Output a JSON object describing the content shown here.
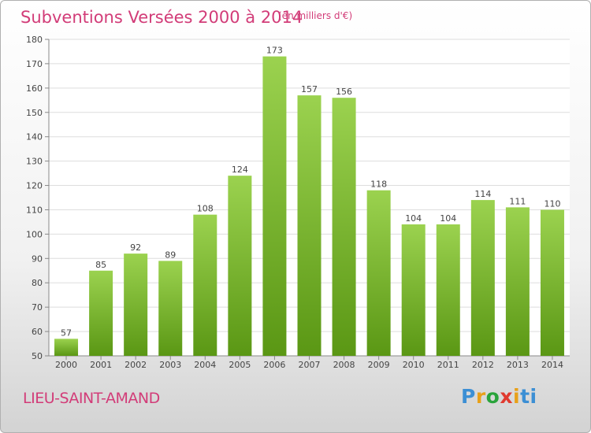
{
  "header": {
    "title": "Subventions Versées 2000 à 2014",
    "unit": "(en milliers d'€)"
  },
  "footer": {
    "commune": "LIEU-SAINT-AMAND",
    "logo": "Proxiti"
  },
  "colors": {
    "title": "#d23c78",
    "bar_light": "#9bd24f",
    "bar_dark": "#5a9714",
    "grid": "#dddddd"
  },
  "chart_data": {
    "type": "bar",
    "title": "Subventions Versées 2000 à 2014",
    "subtitle": "(en milliers d'€)",
    "categories": [
      "2000",
      "2001",
      "2002",
      "2003",
      "2004",
      "2005",
      "2006",
      "2007",
      "2008",
      "2009",
      "2010",
      "2011",
      "2012",
      "2013",
      "2014"
    ],
    "values": [
      57,
      85,
      92,
      89,
      108,
      124,
      173,
      157,
      156,
      118,
      104,
      104,
      114,
      111,
      110
    ],
    "ylim": [
      50,
      180
    ],
    "yticks": [
      50,
      60,
      70,
      80,
      90,
      100,
      110,
      120,
      130,
      140,
      150,
      160,
      170,
      180
    ],
    "grid": true,
    "data_labels": true
  }
}
